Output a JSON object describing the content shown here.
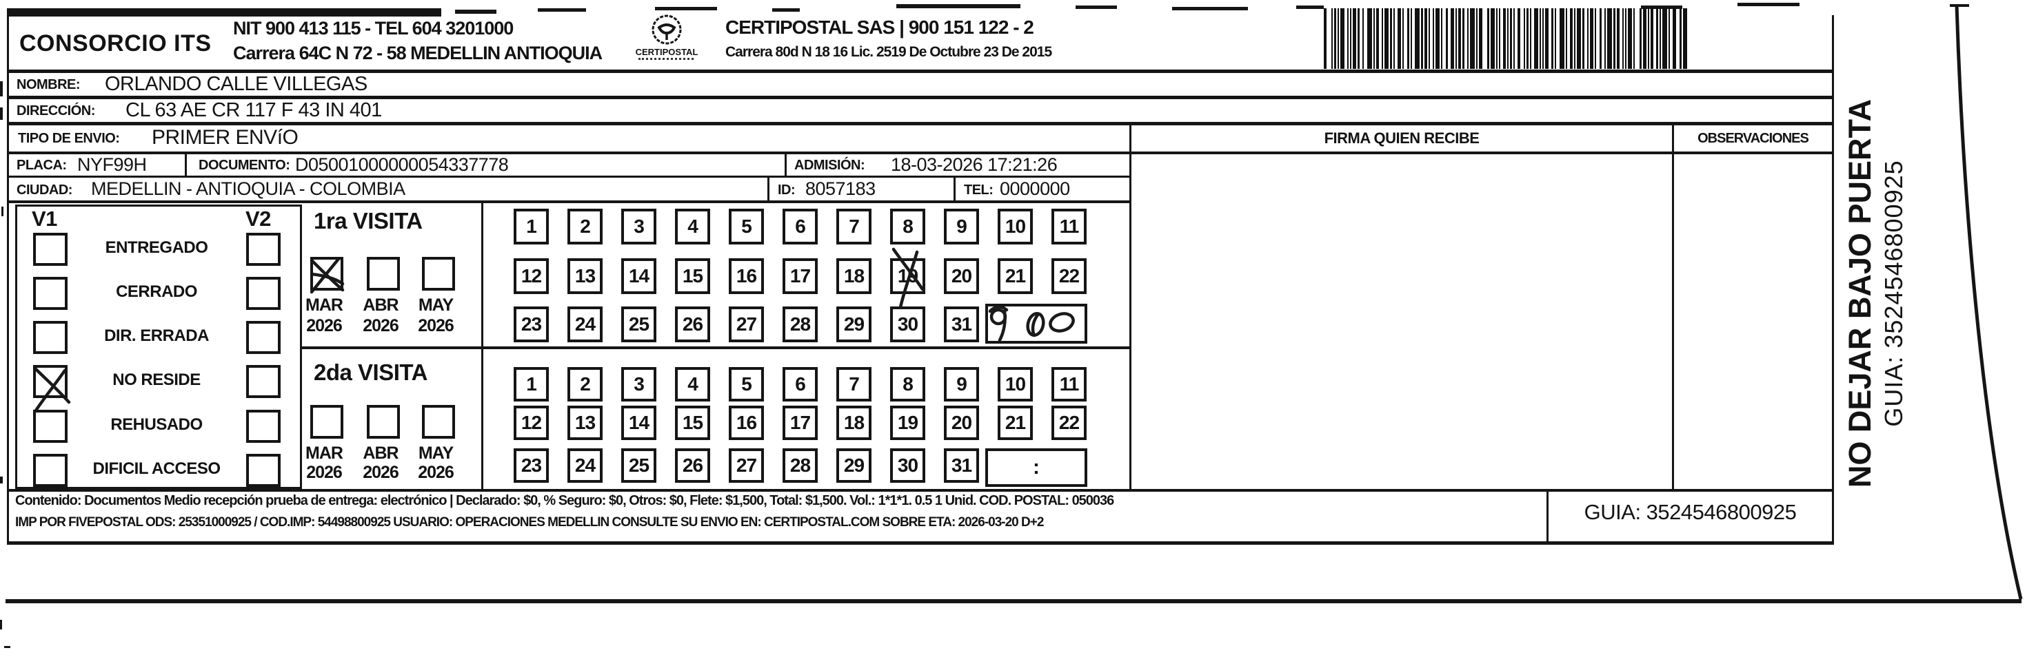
{
  "header": {
    "company": "CONSORCIO ITS",
    "company_info_line1": "NIT 900 413 115 - TEL 604 3201000",
    "company_info_line2": "Carrera 64C N 72 - 58 MEDELLIN ANTIOQUIA",
    "logo_caption": "CERTIPOSTAL",
    "carrier": "CERTIPOSTAL SAS | 900 151 122 - 2",
    "carrier_info": "Carrera 80d N 18 16  Lic. 2519 De Octubre 23 De 2015",
    "barcode_value": "3524546800925"
  },
  "recipient": {
    "nombre_label": "NOMBRE:",
    "nombre": "ORLANDO CALLE VILLEGAS",
    "direccion_label": "DIRECCIÓN:",
    "direccion": "CL 63 AE CR 117 F 43 IN 401",
    "tipo_envio_label": "TIPO DE ENVIO:",
    "tipo_envio": "PRIMER ENVíO",
    "placa_label": "PLACA:",
    "placa": "NYF99H",
    "documento_label": "DOCUMENTO:",
    "documento": "D05001000000054337778",
    "admision_label": "ADMISIÓN:",
    "admision": "18-03-2026 17:21:26",
    "ciudad_label": "CIUDAD:",
    "ciudad": "MEDELLIN - ANTIOQUIA - COLOMBIA",
    "id_label": "ID:",
    "id": "8057183",
    "tel_label": "TEL:",
    "tel": "0000000"
  },
  "signature": {
    "firma_header": "FIRMA QUIEN RECIBE",
    "observaciones_header": "OBSERVACIONES"
  },
  "visits": {
    "v1_label": "V1",
    "v2_label": "V2",
    "statuses": [
      "ENTREGADO",
      "CERRADO",
      "DIR. ERRADA",
      "NO RESIDE",
      "REHUSADO",
      "DIFICIL ACCESO"
    ],
    "v1_checked_status": "NO RESIDE",
    "first_visit_label": "1ra VISITA",
    "second_visit_label": "2da VISITA",
    "months": [
      {
        "month": "MAR",
        "year": "2026"
      },
      {
        "month": "ABR",
        "year": "2026"
      },
      {
        "month": "MAY",
        "year": "2026"
      }
    ],
    "first_visit_month_checked": "MAR 2026",
    "days": [
      "1",
      "2",
      "3",
      "4",
      "5",
      "6",
      "7",
      "8",
      "9",
      "10",
      "11",
      "12",
      "13",
      "14",
      "15",
      "16",
      "17",
      "18",
      "19",
      "20",
      "21",
      "22",
      "23",
      "24",
      "25",
      "26",
      "27",
      "28",
      "29",
      "30",
      "31"
    ],
    "first_visit_day_marked": "19",
    "first_visit_time_handwritten": "9 00",
    "second_visit_time_placeholder": ":"
  },
  "footer": {
    "contenido_line1": "Contenido: Documentos Medio recepción prueba de entrega: electrónico | Declarado: $0, % Seguro: $0, Otros: $0, Flete: $1,500, Total: $1,500. Vol.: 1*1*1. 0.5  1 Unid. COD. POSTAL: 050036",
    "contenido_line2": "IMP POR FIVEPOSTAL ODS: 25351000925 / COD.IMP: 54498800925 USUARIO: OPERACIONES MEDELLIN CONSULTE SU ENVIO EN: CERTIPOSTAL.COM SOBRE ETA: 2026-03-20 D+2",
    "guia": "GUIA: 3524546800925"
  },
  "side_note": {
    "line1": "NO DEJAR BAJO PUERTA",
    "line2": "GUIA: 3524546800925"
  }
}
